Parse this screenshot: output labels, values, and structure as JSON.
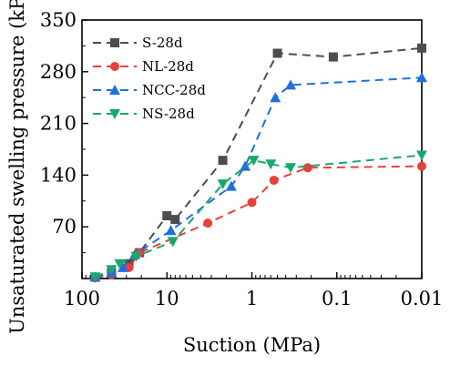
{
  "chart_data": {
    "type": "line",
    "xlabel": "Suction (MPa)",
    "ylabel": "Unsaturated swelling pressure (kPa)",
    "x_scale": "log",
    "x_reversed": true,
    "xlim": [
      100,
      0.01
    ],
    "ylim": [
      0,
      350
    ],
    "x_ticks": [
      100,
      10,
      1,
      0.1,
      0.01
    ],
    "x_tick_labels": [
      "100",
      "10",
      "1",
      "0.1",
      "0.01"
    ],
    "y_ticks": [
      70,
      140,
      210,
      280,
      350
    ],
    "y_tick_labels": [
      "70",
      "140",
      "210",
      "280",
      "350"
    ],
    "grid": false,
    "legend_position": "top-left",
    "series": [
      {
        "name": "S-28d",
        "color": "#4d4d4d",
        "marker": "square",
        "points": [
          [
            70,
            2
          ],
          [
            45,
            8
          ],
          [
            28,
            20
          ],
          [
            21,
            35
          ],
          [
            10,
            85
          ],
          [
            8,
            80
          ],
          [
            2.2,
            160
          ],
          [
            0.5,
            305
          ],
          [
            0.11,
            300
          ],
          [
            0.01,
            312
          ]
        ]
      },
      {
        "name": "NL-28d",
        "color": "#e8403a",
        "marker": "circle",
        "points": [
          [
            70,
            1
          ],
          [
            45,
            5
          ],
          [
            28,
            15
          ],
          [
            21,
            35
          ],
          [
            3.3,
            75
          ],
          [
            1.0,
            103
          ],
          [
            0.55,
            133
          ],
          [
            0.22,
            150
          ],
          [
            0.01,
            152
          ]
        ]
      },
      {
        "name": "NCC-28d",
        "color": "#1f6fe0",
        "marker": "triangle-up",
        "points": [
          [
            70,
            2
          ],
          [
            45,
            8
          ],
          [
            33,
            15
          ],
          [
            24,
            32
          ],
          [
            9,
            65
          ],
          [
            1.75,
            125
          ],
          [
            1.2,
            152
          ],
          [
            0.53,
            245
          ],
          [
            0.35,
            262
          ],
          [
            0.01,
            272
          ]
        ]
      },
      {
        "name": "NS-28d",
        "color": "#18a96a",
        "marker": "triangle-down",
        "points": [
          [
            70,
            2
          ],
          [
            45,
            12
          ],
          [
            36,
            20
          ],
          [
            23,
            30
          ],
          [
            8.5,
            50
          ],
          [
            2.2,
            128
          ],
          [
            0.95,
            160
          ],
          [
            0.6,
            155
          ],
          [
            0.35,
            150
          ],
          [
            0.01,
            167
          ]
        ]
      }
    ]
  }
}
